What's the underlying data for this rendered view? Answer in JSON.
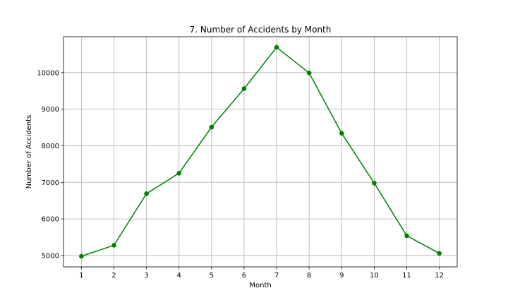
{
  "chart_data": {
    "type": "line",
    "title": "7. Number of Accidents by Month",
    "xlabel": "Month",
    "ylabel": "Number of Accidents",
    "x": [
      1,
      2,
      3,
      4,
      5,
      6,
      7,
      8,
      9,
      10,
      11,
      12
    ],
    "x_ticks": [
      1,
      2,
      3,
      4,
      5,
      6,
      7,
      8,
      9,
      10,
      11,
      12
    ],
    "y_ticks": [
      5000,
      6000,
      7000,
      8000,
      9000,
      10000
    ],
    "xlim": [
      0.45,
      12.55
    ],
    "ylim": [
      4690,
      10980
    ],
    "grid": true,
    "series": [
      {
        "color": "#008000",
        "marker": "circle",
        "values": [
          4980,
          5280,
          6690,
          7250,
          8510,
          9560,
          10690,
          9990,
          8340,
          6980,
          5540,
          5060
        ]
      }
    ]
  }
}
